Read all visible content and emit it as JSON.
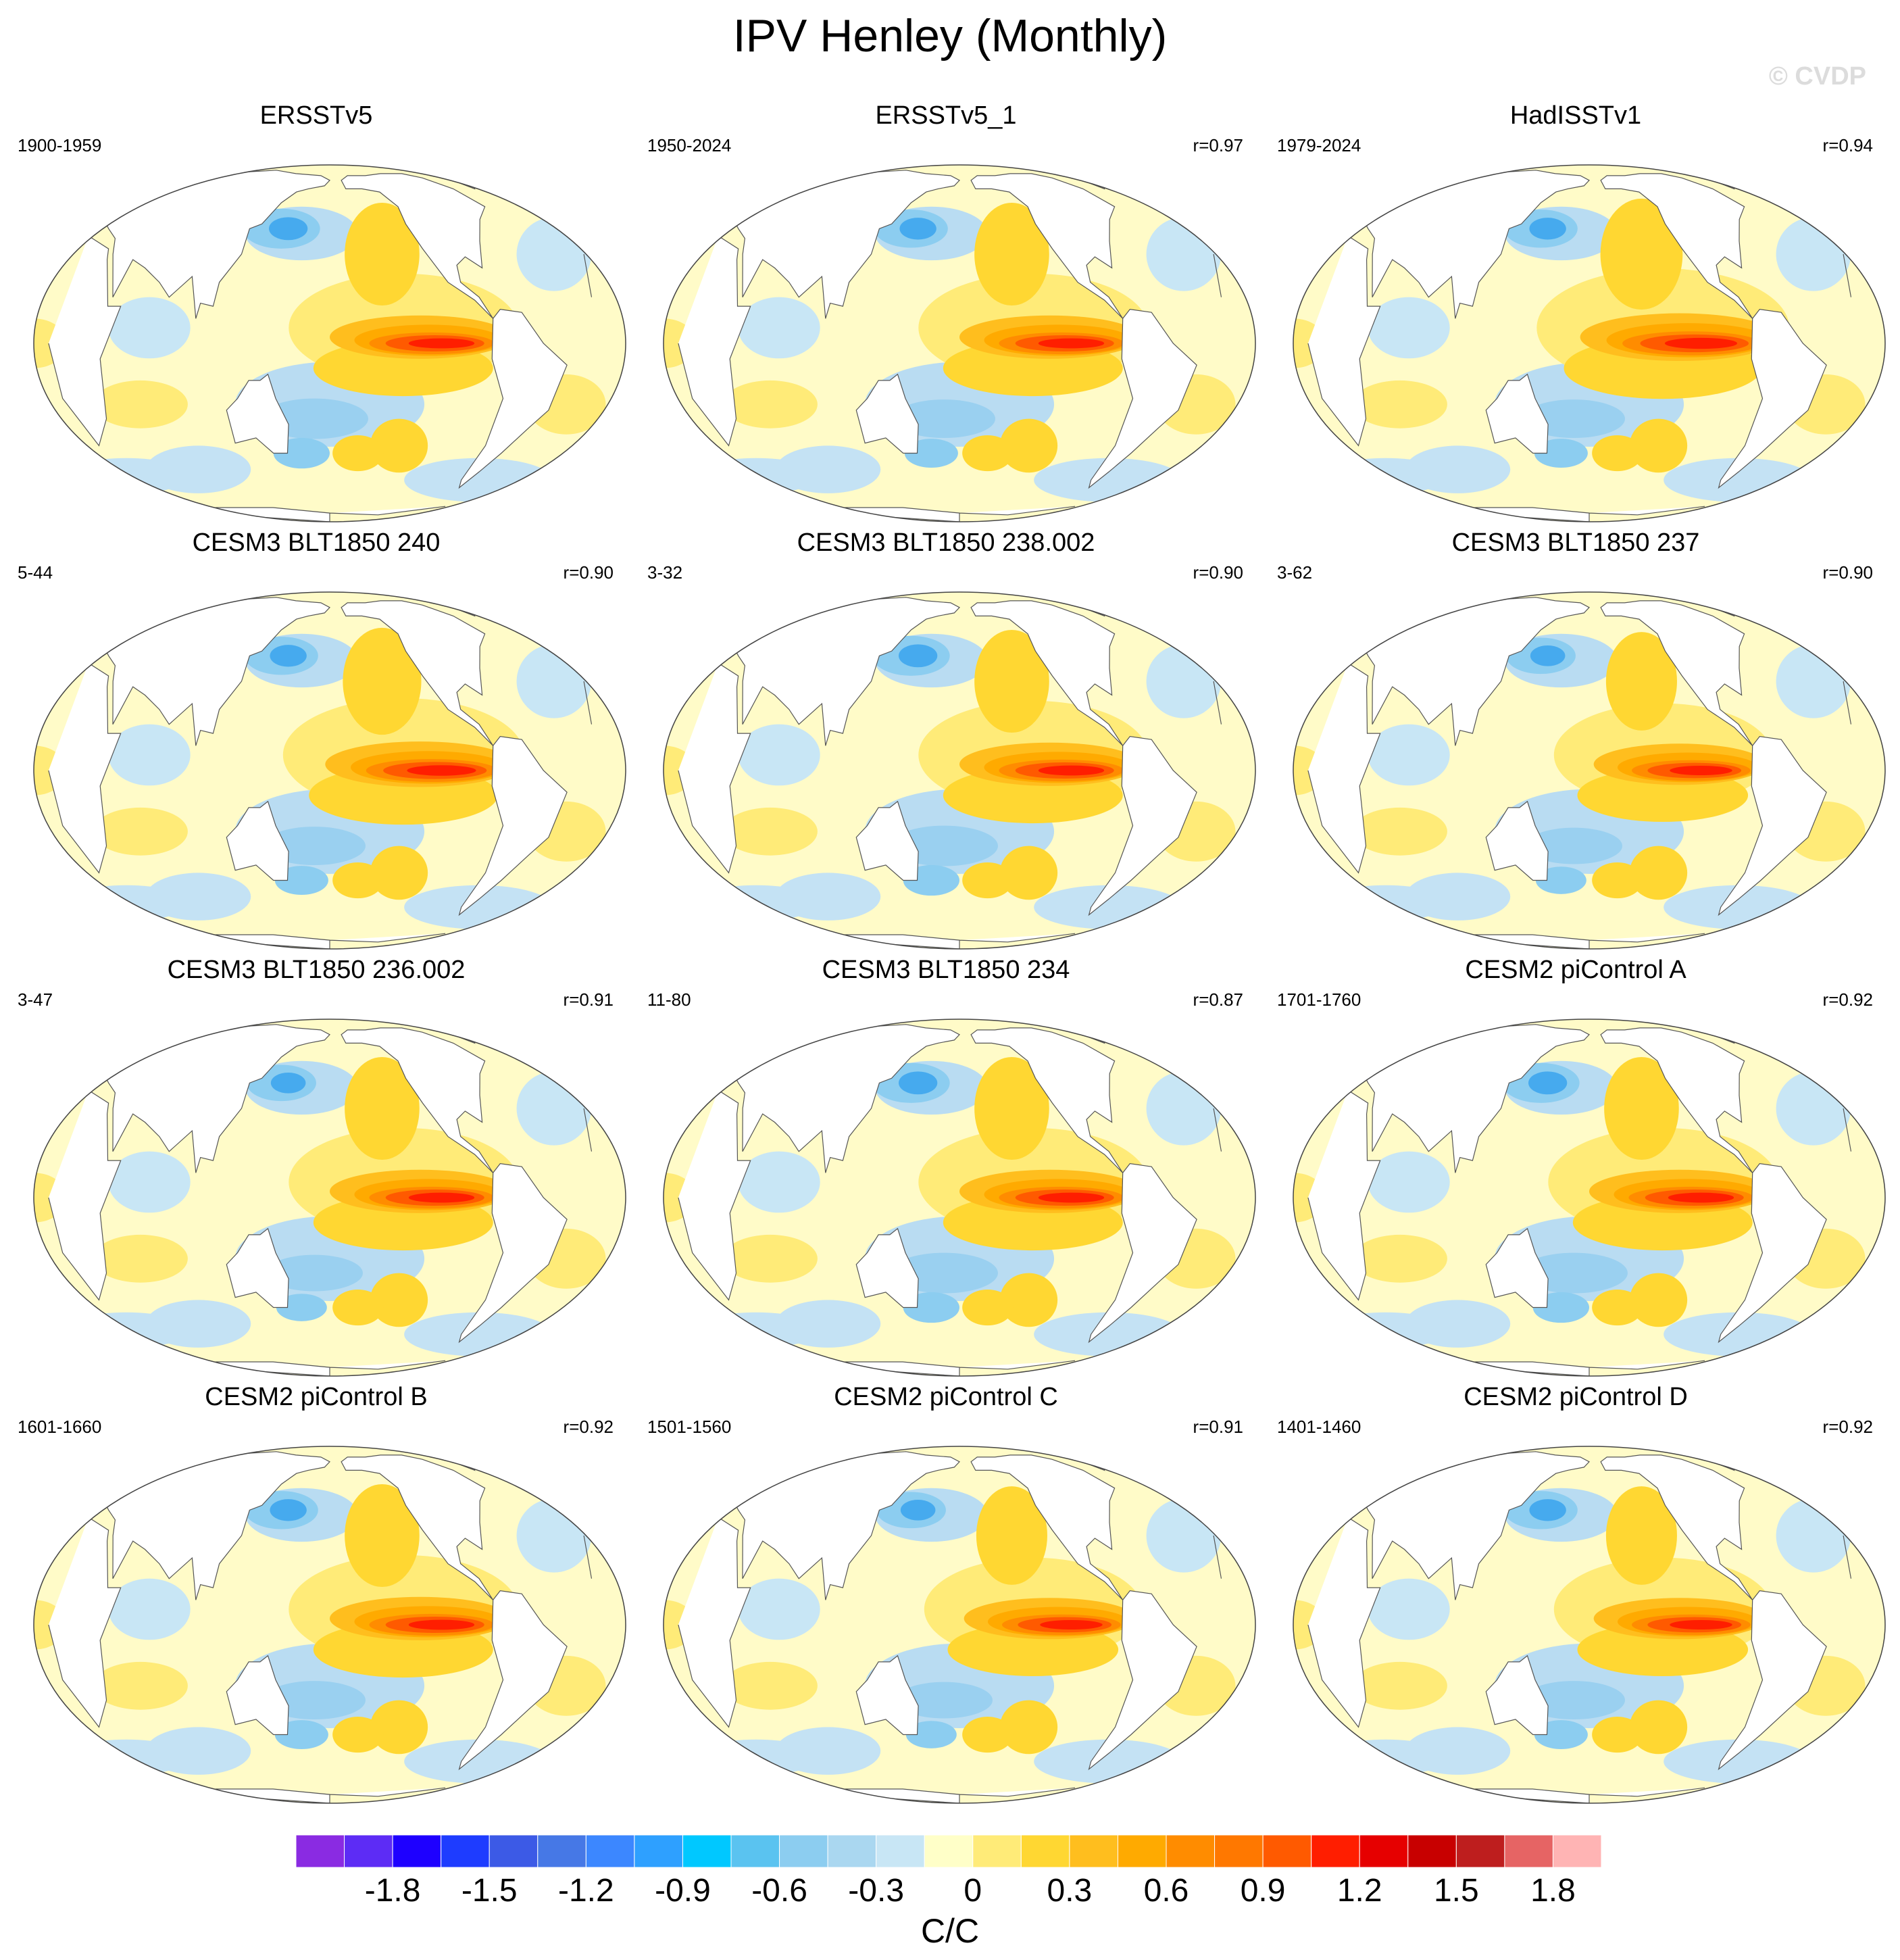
{
  "title": "IPV Henley (Monthly)",
  "watermark": "© CVDP",
  "panels": [
    {
      "name": "ERSSTv5",
      "period": "1900-1959",
      "r": "",
      "warm": 1.0,
      "cold": 1.0
    },
    {
      "name": "ERSSTv5_1",
      "period": "1950-2024",
      "r": "r=0.97",
      "warm": 1.0,
      "cold": 0.95
    },
    {
      "name": "HadISSTv1",
      "period": "1979-2024",
      "r": "r=0.94",
      "warm": 1.1,
      "cold": 0.95
    },
    {
      "name": "CESM3 BLT1850 240",
      "period": "5-44",
      "r": "r=0.90",
      "warm": 1.05,
      "cold": 0.95
    },
    {
      "name": "CESM3 BLT1850 238.002",
      "period": "3-32",
      "r": "r=0.90",
      "warm": 1.0,
      "cold": 1.0
    },
    {
      "name": "CESM3 BLT1850 237",
      "period": "3-62",
      "r": "r=0.90",
      "warm": 0.95,
      "cold": 0.9
    },
    {
      "name": "CESM3 BLT1850 236.002",
      "period": "3-47",
      "r": "r=0.91",
      "warm": 1.0,
      "cold": 0.9
    },
    {
      "name": "CESM3 BLT1850 234",
      "period": "11-80",
      "r": "r=0.87",
      "warm": 1.0,
      "cold": 1.0
    },
    {
      "name": "CESM2 piControl A",
      "period": "1701-1760",
      "r": "r=0.92",
      "warm": 1.0,
      "cold": 1.0
    },
    {
      "name": "CESM2 piControl B",
      "period": "1601-1660",
      "r": "r=0.92",
      "warm": 1.0,
      "cold": 0.95
    },
    {
      "name": "CESM2 piControl C",
      "period": "1501-1560",
      "r": "r=0.91",
      "warm": 0.95,
      "cold": 0.9
    },
    {
      "name": "CESM2 piControl D",
      "period": "1401-1460",
      "r": "r=0.92",
      "warm": 0.95,
      "cold": 0.95
    }
  ],
  "colorbar": {
    "colors": [
      "#8a2be2",
      "#5d2cf5",
      "#1e00ff",
      "#1e3cff",
      "#3c5ae6",
      "#4678e6",
      "#3c87ff",
      "#2ea0ff",
      "#00c8ff",
      "#5ac3f0",
      "#8ccdf0",
      "#aad7f0",
      "#c8e6f5",
      "#ffffc8",
      "#ffeb78",
      "#ffd732",
      "#ffbe1e",
      "#ffaa00",
      "#ff8c00",
      "#ff7800",
      "#ff5a00",
      "#ff1e00",
      "#e60000",
      "#c80000",
      "#be1e1e",
      "#e66464",
      "#ffb4b4"
    ],
    "labels": [
      "-1.8",
      "-1.5",
      "-1.2",
      "-0.9",
      "-0.6",
      "-0.3",
      "0",
      "0.3",
      "0.6",
      "0.9",
      "1.2",
      "1.5",
      "1.8"
    ],
    "units": "C/C"
  }
}
